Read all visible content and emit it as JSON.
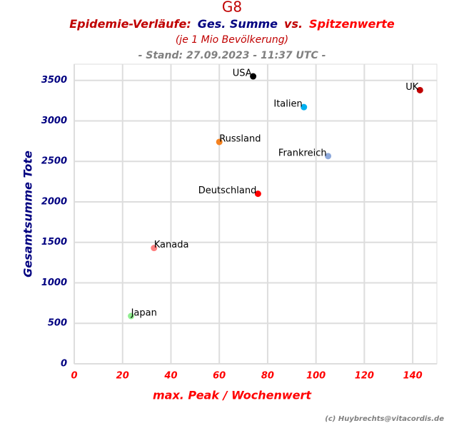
{
  "chart_data": {
    "type": "scatter",
    "title": "G8",
    "subtitle_parts": [
      {
        "text": "Epidemie-Verläufe:",
        "color": "#c00000"
      },
      {
        "text": "Ges. Summe",
        "color": "#000080"
      },
      {
        "text": "vs.",
        "color": "#c00000"
      },
      {
        "text": "Spitzenwerte",
        "color": "#ff0000"
      }
    ],
    "note": "(je 1 Mio Bevölkerung)",
    "stand": "- Stand: 27.09.2023 - 11:37 UTC -",
    "credit": "(c) Huybrechts@vitacordis.de",
    "x_label": "max. Peak / Wochenwert",
    "y_label": "Gesamtsumme Tote",
    "xlim": [
      0,
      150
    ],
    "ylim": [
      0,
      3700
    ],
    "xticks": [
      0,
      20,
      40,
      60,
      80,
      100,
      120,
      140
    ],
    "yticks": [
      0,
      500,
      1000,
      1500,
      2000,
      2500,
      3000,
      3500
    ],
    "grid": true,
    "series": [
      {
        "name": "USA",
        "color": "#000000",
        "x": [
          74
        ],
        "values": [
          3550
        ]
      },
      {
        "name": "UK",
        "color": "#c00000",
        "x": [
          143
        ],
        "values": [
          3380
        ]
      },
      {
        "name": "Italien",
        "color": "#00b0f0",
        "x": [
          95
        ],
        "values": [
          3170
        ]
      },
      {
        "name": "Russland",
        "color": "#f58220",
        "x": [
          60
        ],
        "values": [
          2740
        ]
      },
      {
        "name": "Frankreich",
        "color": "#8ea9db",
        "x": [
          105
        ],
        "values": [
          2565
        ]
      },
      {
        "name": "Deutschland",
        "color": "#ff0000",
        "x": [
          76
        ],
        "values": [
          2100
        ]
      },
      {
        "name": "Kanada",
        "color": "#ff8080",
        "x": [
          33
        ],
        "values": [
          1430
        ]
      },
      {
        "name": "Japan",
        "color": "#90ee90",
        "x": [
          23.5
        ],
        "values": [
          590
        ]
      }
    ]
  }
}
